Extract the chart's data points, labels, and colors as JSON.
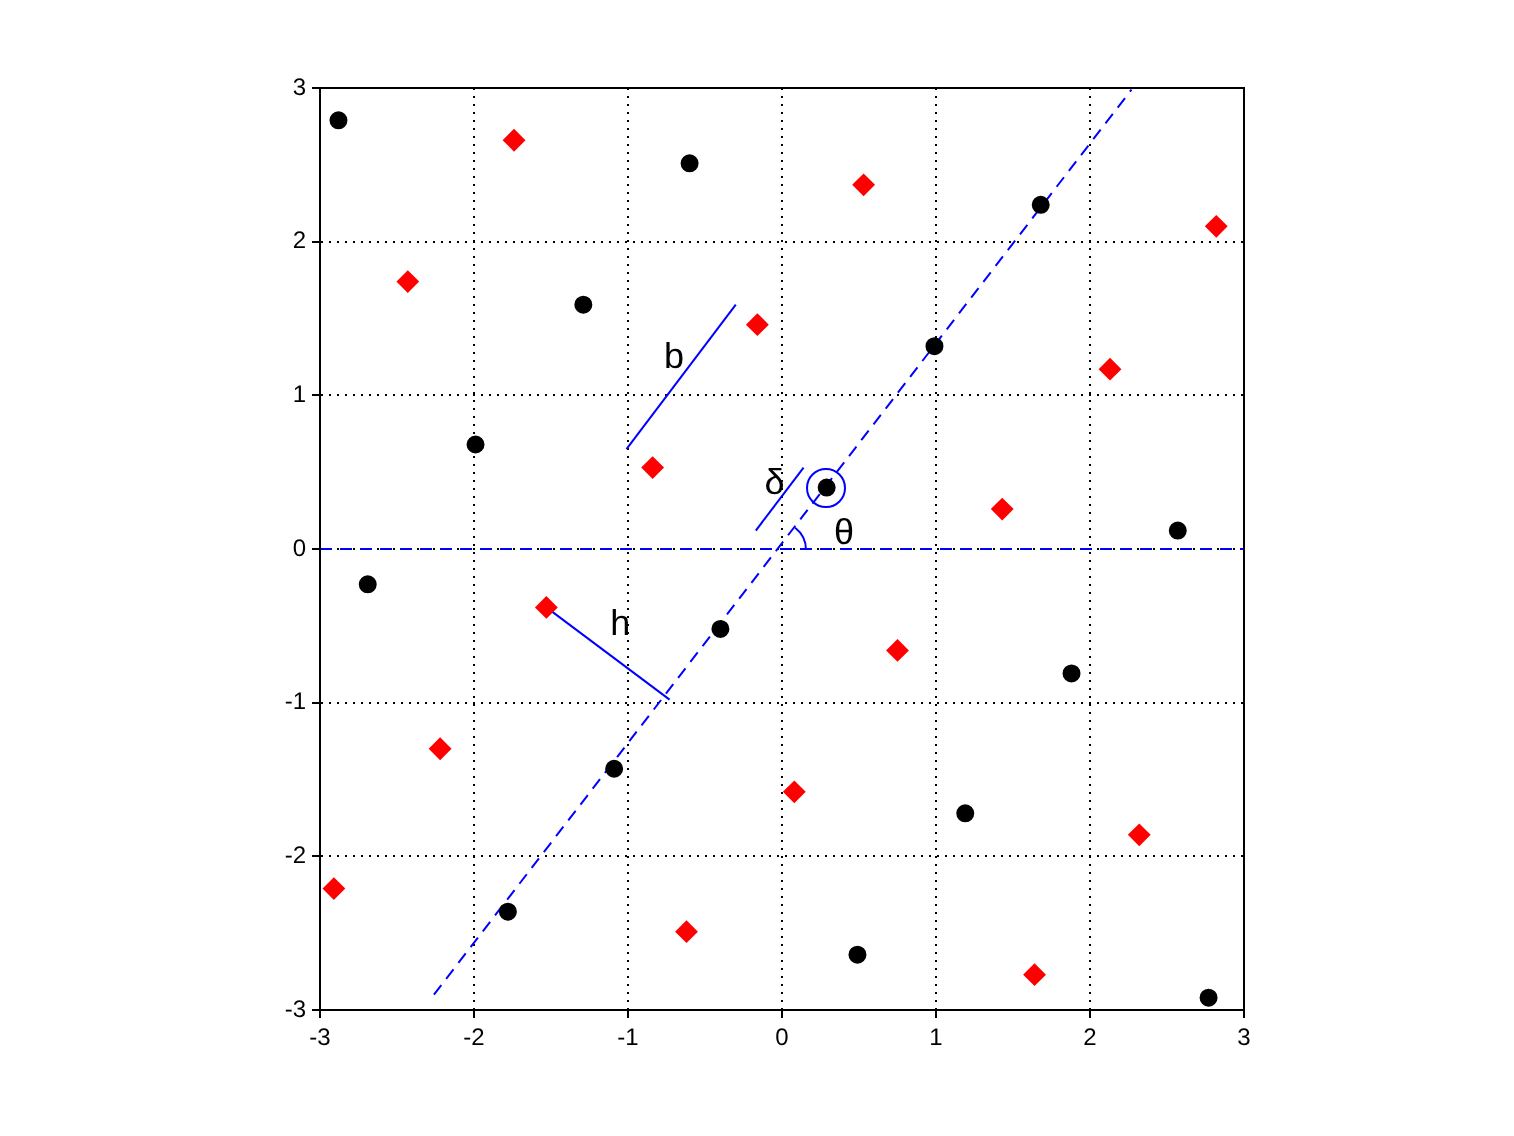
{
  "chart_data": {
    "type": "scatter",
    "xlim": [
      -3,
      3
    ],
    "ylim": [
      -3,
      3
    ],
    "xticks": [
      -3,
      -2,
      -1,
      0,
      1,
      2,
      3
    ],
    "yticks": [
      -3,
      -2,
      -1,
      0,
      1,
      2,
      3
    ],
    "grid": true,
    "legend": false,
    "series": [
      {
        "color": "#000000",
        "marker": "circle",
        "x": [
          -2.88,
          -0.6,
          -1.29,
          -1.99,
          -2.69,
          -0.4,
          -1.09,
          -1.78,
          0.29,
          0.99,
          1.68,
          2.57,
          1.88,
          1.19,
          0.49,
          2.77
        ],
        "values": [
          2.79,
          2.51,
          1.59,
          0.68,
          -0.23,
          -0.52,
          -1.43,
          -2.36,
          0.4,
          1.32,
          2.24,
          0.12,
          -0.81,
          -1.72,
          -2.64,
          -2.92
        ]
      },
      {
        "color": "#ff0000",
        "marker": "diamond",
        "x": [
          -1.74,
          -2.43,
          -0.16,
          -0.84,
          -1.53,
          -2.22,
          -2.91,
          -0.62,
          0.08,
          0.75,
          1.43,
          2.13,
          2.82,
          0.53,
          1.64,
          2.32
        ],
        "values": [
          2.66,
          1.74,
          1.46,
          0.53,
          -0.38,
          -1.3,
          -2.21,
          -2.49,
          -1.58,
          -0.66,
          0.26,
          1.17,
          2.1,
          2.37,
          -2.77,
          -1.86
        ]
      },
      {
        "type": "line",
        "color": "#0000ff",
        "line_style": "dashed",
        "marker": "none",
        "x": [
          -2.26,
          2.27
        ],
        "values": [
          -2.9,
          2.99
        ]
      },
      {
        "type": "line",
        "color": "#0000ff",
        "line_style": "solid",
        "marker": "none",
        "x": [
          -1.01,
          -0.3
        ],
        "values": [
          0.65,
          1.59
        ]
      },
      {
        "type": "line",
        "color": "#0000ff",
        "line_style": "solid",
        "marker": "none",
        "x": [
          -1.53,
          -0.73
        ],
        "values": [
          -0.38,
          -0.98
        ]
      },
      {
        "type": "line",
        "color": "#0000ff",
        "line_style": "solid",
        "marker": "none",
        "x": [
          -0.17,
          0.14
        ],
        "values": [
          0.12,
          0.53
        ]
      }
    ],
    "ref_lines": [
      {
        "axis": "y",
        "value": 0,
        "color": "#0000ff",
        "line_style": "dashed"
      }
    ],
    "annotations": [
      "b",
      "h",
      "δ",
      "θ"
    ]
  }
}
